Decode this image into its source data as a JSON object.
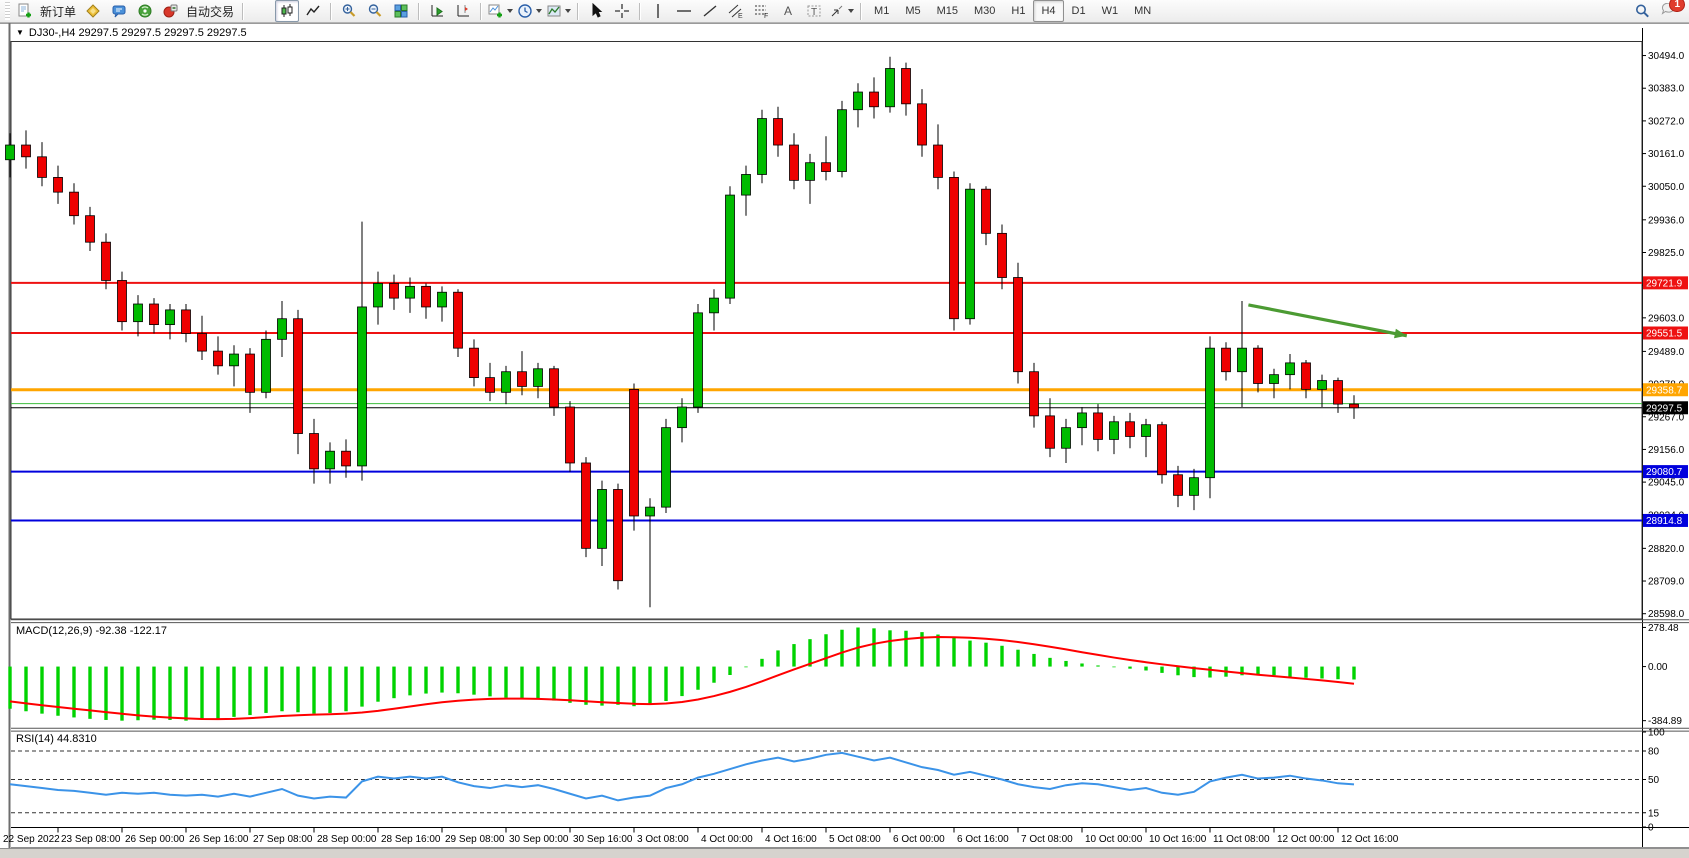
{
  "toolbar": {
    "new_order_label": "新订单",
    "auto_trading_label": "自动交易",
    "icons": [
      "new-order",
      "market-watch",
      "chat",
      "signals",
      "auto-trading",
      "bar-chart",
      "candlestick-chart",
      "line-chart",
      "zoom-in",
      "zoom-out",
      "tile-windows",
      "auto-scroll",
      "chart-shift",
      "indicators",
      "periods",
      "templates",
      "cursor",
      "crosshair",
      "vertical-line",
      "horizontal-line",
      "trendline",
      "equidistant-channel",
      "fibonacci",
      "text",
      "text-label",
      "arrows",
      "search",
      "notifications"
    ],
    "active_chart_mode": "candlestick-chart",
    "timeframes": [
      "M1",
      "M5",
      "M15",
      "M30",
      "H1",
      "H4",
      "D1",
      "W1",
      "MN"
    ],
    "active_timeframe": "H4",
    "notification_count": "1"
  },
  "chart_header": {
    "title": "DJ30-,H4  29297.5 29297.5 29297.5 29297.5",
    "symbol": "DJ30-",
    "timeframe": "H4"
  },
  "chart_data": [
    {
      "type": "candlestick",
      "title": "DJ30- H4",
      "ylim": [
        28580,
        30540
      ],
      "grid": false,
      "y_ticks": [
        "30494.0",
        "30383.0",
        "30272.0",
        "30161.0",
        "30050.0",
        "29936.0",
        "29825.0",
        "29714.0",
        "29603.0",
        "29489.0",
        "29378.0",
        "29267.0",
        "29156.0",
        "29045.0",
        "28934.0",
        "28820.0",
        "28709.0",
        "28598.0"
      ],
      "time_labels": [
        "22 Sep 2022",
        "23 Sep 08:00",
        "26 Sep 00:00",
        "26 Sep 16:00",
        "27 Sep 08:00",
        "28 Sep 00:00",
        "28 Sep 16:00",
        "29 Sep 08:00",
        "30 Sep 00:00",
        "30 Sep 16:00",
        "3 Oct 08:00",
        "4 Oct 00:00",
        "4 Oct 16:00",
        "5 Oct 08:00",
        "6 Oct 00:00",
        "6 Oct 16:00",
        "7 Oct 08:00",
        "10 Oct 00:00",
        "10 Oct 16:00",
        "11 Oct 08:00",
        "12 Oct 00:00",
        "12 Oct 16:00"
      ],
      "ohlc": [
        [
          30140,
          30230,
          30080,
          30190
        ],
        [
          30190,
          30240,
          30110,
          30150
        ],
        [
          30150,
          30200,
          30050,
          30080
        ],
        [
          30080,
          30120,
          29990,
          30030
        ],
        [
          30030,
          30060,
          29920,
          29950
        ],
        [
          29950,
          29980,
          29830,
          29860
        ],
        [
          29860,
          29890,
          29700,
          29730
        ],
        [
          29730,
          29760,
          29560,
          29590
        ],
        [
          29590,
          29680,
          29540,
          29650
        ],
        [
          29650,
          29670,
          29550,
          29580
        ],
        [
          29580,
          29650,
          29530,
          29630
        ],
        [
          29630,
          29650,
          29520,
          29550
        ],
        [
          29550,
          29610,
          29460,
          29490
        ],
        [
          29490,
          29540,
          29410,
          29440
        ],
        [
          29440,
          29510,
          29370,
          29480
        ],
        [
          29480,
          29500,
          29280,
          29350
        ],
        [
          29350,
          29560,
          29330,
          29530
        ],
        [
          29530,
          29660,
          29470,
          29600
        ],
        [
          29600,
          29630,
          29140,
          29210
        ],
        [
          29210,
          29260,
          29040,
          29090
        ],
        [
          29090,
          29180,
          29040,
          29150
        ],
        [
          29150,
          29190,
          29060,
          29100
        ],
        [
          29100,
          29930,
          29050,
          29640
        ],
        [
          29640,
          29760,
          29580,
          29720
        ],
        [
          29720,
          29750,
          29630,
          29670
        ],
        [
          29670,
          29740,
          29620,
          29710
        ],
        [
          29710,
          29720,
          29600,
          29640
        ],
        [
          29640,
          29710,
          29590,
          29690
        ],
        [
          29690,
          29700,
          29470,
          29500
        ],
        [
          29500,
          29530,
          29370,
          29400
        ],
        [
          29400,
          29450,
          29320,
          29350
        ],
        [
          29350,
          29440,
          29310,
          29420
        ],
        [
          29420,
          29490,
          29340,
          29370
        ],
        [
          29370,
          29450,
          29330,
          29430
        ],
        [
          29430,
          29440,
          29270,
          29300
        ],
        [
          29300,
          29320,
          29080,
          29110
        ],
        [
          29110,
          29130,
          28790,
          28820
        ],
        [
          28820,
          29050,
          28760,
          29020
        ],
        [
          29020,
          29040,
          28680,
          28710
        ],
        [
          29360,
          29380,
          28880,
          28930
        ],
        [
          28930,
          28990,
          28620,
          28960
        ],
        [
          28960,
          29260,
          28940,
          29230
        ],
        [
          29230,
          29330,
          29180,
          29300
        ],
        [
          29300,
          29650,
          29280,
          29620
        ],
        [
          29620,
          29700,
          29560,
          29670
        ],
        [
          29670,
          30050,
          29650,
          30020
        ],
        [
          30020,
          30120,
          29950,
          30090
        ],
        [
          30090,
          30310,
          30060,
          30280
        ],
        [
          30280,
          30320,
          30150,
          30190
        ],
        [
          30190,
          30230,
          30040,
          30070
        ],
        [
          30070,
          30160,
          29990,
          30130
        ],
        [
          30130,
          30220,
          30070,
          30100
        ],
        [
          30100,
          30340,
          30080,
          30310
        ],
        [
          30310,
          30400,
          30250,
          30370
        ],
        [
          30370,
          30420,
          30280,
          30320
        ],
        [
          30320,
          30490,
          30300,
          30450
        ],
        [
          30450,
          30470,
          30290,
          30330
        ],
        [
          30330,
          30380,
          30150,
          30190
        ],
        [
          30190,
          30260,
          30040,
          30080
        ],
        [
          30080,
          30100,
          29560,
          29600
        ],
        [
          29600,
          30060,
          29580,
          30040
        ],
        [
          30040,
          30050,
          29850,
          29890
        ],
        [
          29890,
          29920,
          29700,
          29740
        ],
        [
          29740,
          29790,
          29380,
          29420
        ],
        [
          29420,
          29450,
          29230,
          29270
        ],
        [
          29270,
          29330,
          29130,
          29160
        ],
        [
          29160,
          29260,
          29110,
          29230
        ],
        [
          29230,
          29300,
          29170,
          29280
        ],
        [
          29280,
          29310,
          29150,
          29190
        ],
        [
          29190,
          29270,
          29140,
          29250
        ],
        [
          29250,
          29280,
          29160,
          29200
        ],
        [
          29200,
          29260,
          29130,
          29240
        ],
        [
          29240,
          29250,
          29040,
          29070
        ],
        [
          29070,
          29100,
          28960,
          29000
        ],
        [
          29000,
          29090,
          28950,
          29060
        ],
        [
          29060,
          29540,
          28990,
          29500
        ],
        [
          29500,
          29520,
          29390,
          29420
        ],
        [
          29420,
          29660,
          29300,
          29500
        ],
        [
          29500,
          29510,
          29350,
          29380
        ],
        [
          29380,
          29430,
          29330,
          29410
        ],
        [
          29410,
          29480,
          29360,
          29450
        ],
        [
          29450,
          29460,
          29330,
          29360
        ],
        [
          29360,
          29410,
          29300,
          29390
        ],
        [
          29390,
          29400,
          29280,
          29310
        ],
        [
          29310,
          29340,
          29260,
          29297.5
        ]
      ],
      "levels": [
        {
          "price": 29721.9,
          "label": "29721.9",
          "color": "#ee1111",
          "width": 2
        },
        {
          "price": 29551.5,
          "label": "29551.5",
          "color": "#ee1111",
          "width": 2
        },
        {
          "price": 29358.7,
          "label": "29358.7",
          "color": "#ffa500",
          "width": 3
        },
        {
          "price": 29080.7,
          "label": "29080.7",
          "color": "#0000dd",
          "width": 2
        },
        {
          "price": 28914.8,
          "label": "28914.8",
          "color": "#0000dd",
          "width": 2
        }
      ],
      "bid": 29297.5,
      "bid_label": "29297.5",
      "bid_color": "#000000",
      "ask": 29311.5,
      "ask_color": "#3dbe3d",
      "trend_arrow": {
        "color": "#4c9b33",
        "from": {
          "index": 77.4,
          "price": 29647
        },
        "to": {
          "index": 87.3,
          "price": 29542
        }
      },
      "colors": {
        "up": "#00bb00",
        "down": "#ee0000",
        "wick": "#000000",
        "outline": "#000000",
        "background": "#ffffff"
      }
    },
    {
      "type": "macd_histogram",
      "label": "MACD(12,26,9) -92.38 -122.17",
      "macd_value": -92.38,
      "signal_value": -122.17,
      "ylim": [
        -430,
        310
      ],
      "y_ticks": [
        "278.48",
        "0.00",
        "-384.89"
      ],
      "y_tick_values": [
        278.48,
        0,
        -384.89
      ],
      "histogram": [
        -300,
        -318,
        -335,
        -350,
        -362,
        -372,
        -380,
        -385,
        -382,
        -378,
        -380,
        -385,
        -378,
        -370,
        -358,
        -345,
        -330,
        -318,
        -325,
        -335,
        -330,
        -318,
        -285,
        -250,
        -225,
        -205,
        -192,
        -185,
        -190,
        -200,
        -212,
        -222,
        -228,
        -232,
        -242,
        -258,
        -272,
        -278,
        -272,
        -282,
        -270,
        -245,
        -210,
        -165,
        -115,
        -60,
        -5,
        55,
        115,
        160,
        195,
        230,
        262,
        278,
        272,
        258,
        255,
        245,
        228,
        205,
        185,
        170,
        148,
        120,
        90,
        62,
        40,
        22,
        8,
        -5,
        -15,
        -28,
        -45,
        -62,
        -75,
        -78,
        -72,
        -62,
        -58,
        -62,
        -75,
        -80,
        -85,
        -90,
        -92
      ],
      "signal": [
        -248,
        -262,
        -275,
        -288,
        -300,
        -312,
        -324,
        -336,
        -347,
        -356,
        -363,
        -369,
        -373,
        -374,
        -372,
        -367,
        -360,
        -352,
        -346,
        -342,
        -339,
        -335,
        -327,
        -315,
        -300,
        -284,
        -268,
        -254,
        -243,
        -235,
        -230,
        -228,
        -228,
        -230,
        -234,
        -240,
        -247,
        -254,
        -259,
        -265,
        -267,
        -263,
        -252,
        -234,
        -210,
        -180,
        -145,
        -105,
        -62,
        -20,
        20,
        60,
        100,
        135,
        162,
        182,
        196,
        206,
        210,
        209,
        205,
        198,
        188,
        175,
        159,
        141,
        122,
        102,
        83,
        64,
        47,
        31,
        16,
        2,
        -11,
        -23,
        -35,
        -47,
        -58,
        -68,
        -78,
        -88,
        -98,
        -110,
        -122
      ],
      "colors": {
        "histogram": "#00d300",
        "signal": "#ff0000"
      }
    },
    {
      "type": "line",
      "label": "RSI(14) 44.8310",
      "value": 44.831,
      "ylim": [
        0,
        100
      ],
      "y_ticks": [
        "100",
        "80",
        "50",
        "15",
        "0"
      ],
      "y_tick_values": [
        100,
        80,
        50,
        15,
        0
      ],
      "dashed_levels": [
        80,
        50,
        15
      ],
      "values": [
        45,
        43,
        41,
        39,
        38,
        36,
        34,
        36,
        35,
        36,
        34,
        33,
        34,
        32,
        35,
        32,
        36,
        40,
        33,
        30,
        32,
        31,
        48,
        53,
        51,
        53,
        51,
        53,
        47,
        43,
        41,
        44,
        42,
        44,
        40,
        35,
        30,
        33,
        28,
        31,
        33,
        41,
        45,
        52,
        56,
        61,
        66,
        70,
        73,
        69,
        72,
        76,
        78,
        74,
        70,
        73,
        68,
        63,
        60,
        55,
        58,
        54,
        50,
        45,
        42,
        40,
        44,
        46,
        45,
        42,
        39,
        41,
        36,
        34,
        37,
        48,
        52,
        55,
        51,
        52,
        54,
        51,
        49,
        46,
        44.83
      ],
      "color": "#3b93e8"
    }
  ]
}
